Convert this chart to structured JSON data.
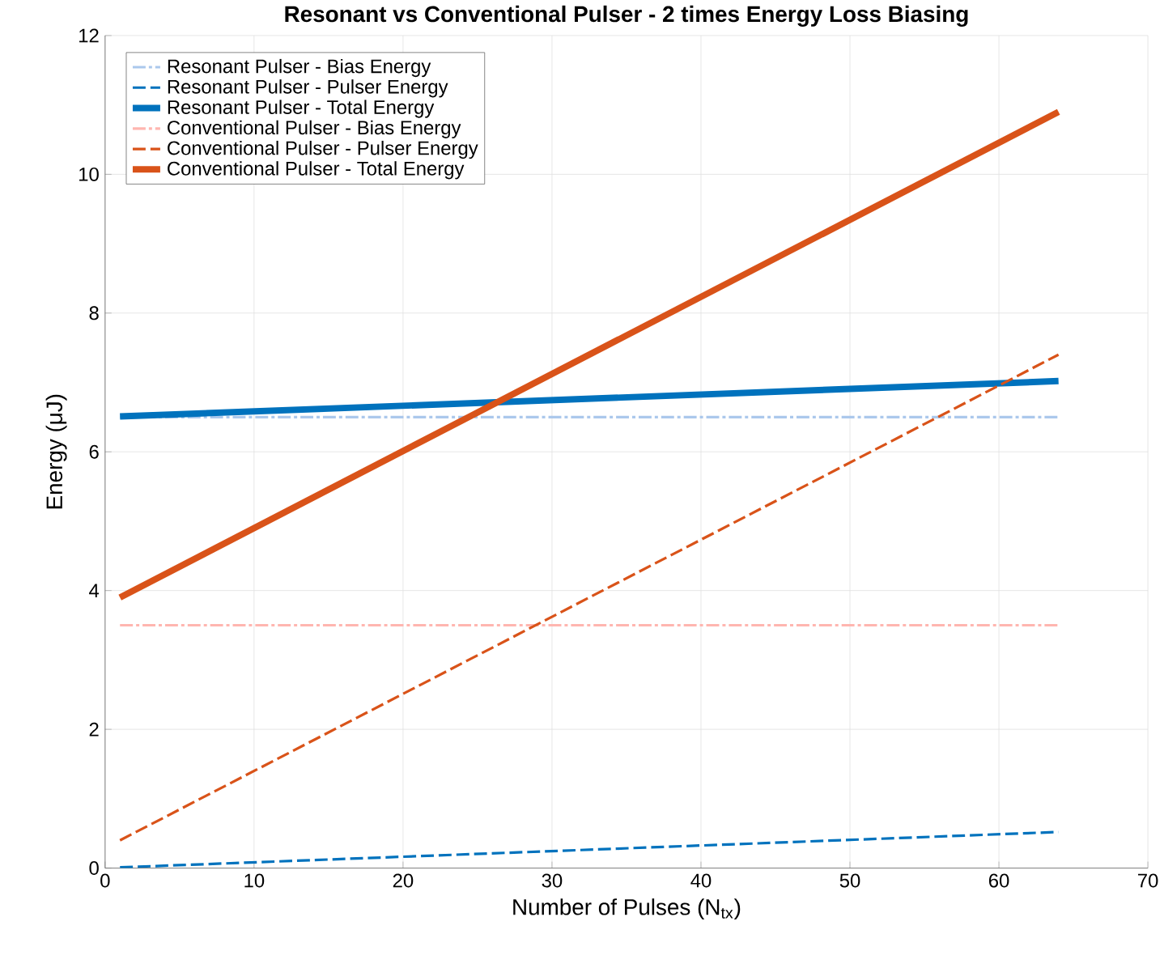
{
  "chart_data": {
    "type": "line",
    "title": "Resonant vs Conventional Pulser - 2 times Energy Loss Biasing",
    "xlabel": "Number of Pulses (N$_{tx}$)",
    "ylabel": "Energy (μJ)",
    "x": [
      1,
      64
    ],
    "xlim": [
      0,
      70
    ],
    "ylim": [
      0,
      12
    ],
    "xticks": [
      0,
      10,
      20,
      30,
      40,
      50,
      60,
      70
    ],
    "yticks": [
      0,
      2,
      4,
      6,
      8,
      10,
      12
    ],
    "grid": true,
    "legend": "top left",
    "marker": "none",
    "series": [
      {
        "name": "Resonant Pulser - Bias Energy",
        "color": "#abc8ec",
        "values": [
          6.5,
          6.5
        ],
        "line_style": "dashdot"
      },
      {
        "name": "Resonant Pulser - Pulser Energy",
        "color": "#0072bd",
        "values": [
          0.01,
          0.52
        ],
        "line_style": "dashed"
      },
      {
        "name": "Resonant Pulser - Total Energy",
        "color": "#0072bd",
        "values": [
          6.51,
          7.02
        ],
        "line_style": "solid"
      },
      {
        "name": "Conventional Pulser - Bias Energy",
        "color": "#ffb6b0",
        "values": [
          3.5,
          3.5
        ],
        "line_style": "dashdot"
      },
      {
        "name": "Conventional Pulser - Pulser Energy",
        "color": "#d95319",
        "values": [
          0.4,
          7.4
        ],
        "line_style": "dashed"
      },
      {
        "name": "Conventional Pulser - Total Energy",
        "color": "#d95319",
        "values": [
          3.9,
          10.9
        ],
        "line_style": "solid"
      }
    ]
  }
}
